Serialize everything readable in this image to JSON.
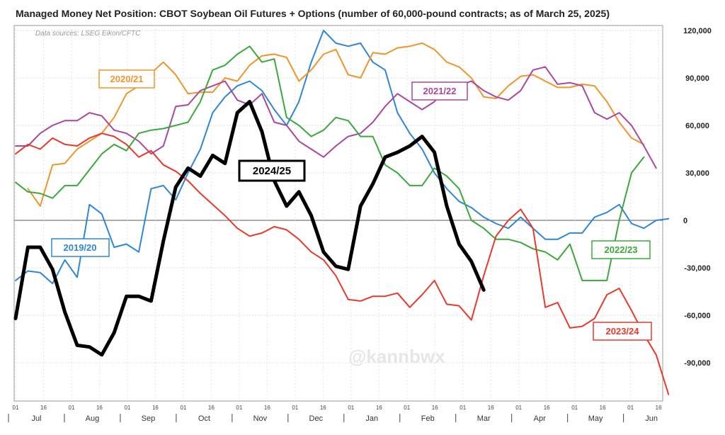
{
  "chart_data": {
    "type": "line",
    "title": "Managed Money Net Position: CBOT Soybean Oil Futures + Options (number of 60,000-pound contracts; as of March 25, 2025)",
    "source": "Data sources: LSEG Eikon/CFTC",
    "watermark": "@kannbwx",
    "xlabel": "",
    "ylabel": "",
    "x_unit": "weeks since July 1",
    "xlim": [
      0,
      52.5
    ],
    "ylim": [
      -115000,
      122000
    ],
    "grid": true,
    "yticks": [
      120000,
      90000,
      60000,
      30000,
      0,
      -30000,
      -60000,
      -90000
    ],
    "ytick_labels": [
      "120,000",
      "90,000",
      "60,000",
      "30,000",
      "0",
      "-30,000",
      "-60,000",
      "-90,000"
    ],
    "months": [
      "Jul",
      "Aug",
      "Sep",
      "Oct",
      "Nov",
      "Dec",
      "Jan",
      "Feb",
      "Mar",
      "Apr",
      "May",
      "Jun"
    ],
    "day_ticks": [
      "01",
      "16"
    ],
    "series": [
      {
        "name": "2019/20",
        "color": "#2f86d6",
        "width": 2,
        "start": 0,
        "values": [
          -38000,
          -32000,
          -33000,
          -40000,
          -25000,
          -36000,
          10000,
          4000,
          -17000,
          -15000,
          -20000,
          20000,
          22000,
          13000,
          30000,
          45000,
          68000,
          78000,
          85000,
          88000,
          82000,
          70000,
          60000,
          75000,
          100000,
          120000,
          112000,
          110000,
          112000,
          100000,
          95000,
          68000,
          55000,
          45000,
          30000,
          20000,
          12000,
          8000,
          2000,
          -2000,
          -5000,
          2000,
          -5000,
          -12000,
          -12000,
          -8000,
          -8000,
          2000,
          5000,
          10000,
          -2000,
          -5000,
          0,
          1000
        ]
      },
      {
        "name": "2020/21",
        "color": "#f0952a",
        "width": 2,
        "start": 1,
        "values": [
          20000,
          9000,
          35000,
          36000,
          45000,
          50000,
          55000,
          65000,
          80000,
          85000,
          93000,
          100000,
          92000,
          80000,
          81000,
          81000,
          90000,
          88000,
          98000,
          104000,
          105000,
          103000,
          88000,
          95000,
          105000,
          108000,
          92000,
          90000,
          106000,
          105000,
          109000,
          110000,
          112000,
          108000,
          100000,
          97000,
          90000,
          78000,
          77000,
          85000,
          91000,
          92000,
          88000,
          84000,
          84000,
          86000,
          85000,
          75000,
          62000,
          52000,
          48000
        ]
      },
      {
        "name": "2021/22",
        "color": "#a8479e",
        "width": 2,
        "start": 0,
        "values": [
          47000,
          47000,
          55000,
          60000,
          63000,
          63000,
          68000,
          66000,
          57000,
          55000,
          50000,
          42000,
          47000,
          72000,
          73000,
          82000,
          85000,
          88000,
          76000,
          73000,
          80000,
          62000,
          60000,
          50000,
          45000,
          40000,
          47000,
          53000,
          55000,
          62000,
          72000,
          80000,
          75000,
          70000,
          75000,
          85000,
          85000,
          88000,
          82000,
          78000,
          76000,
          82000,
          95000,
          97000,
          86000,
          87000,
          85000,
          68000,
          64000,
          68000,
          60000,
          47000,
          33000
        ]
      },
      {
        "name": "2022/23",
        "color": "#3aa83a",
        "width": 2,
        "start": 0,
        "values": [
          24000,
          18000,
          17000,
          14000,
          22000,
          22000,
          32000,
          42000,
          48000,
          44000,
          55000,
          57000,
          58000,
          60000,
          62000,
          75000,
          95000,
          98000,
          105000,
          110000,
          100000,
          102000,
          65000,
          60000,
          53000,
          57000,
          65000,
          63000,
          53000,
          53000,
          35000,
          30000,
          22000,
          22000,
          33000,
          28000,
          20000,
          0,
          -5000,
          -12000,
          -12000,
          -14000,
          -18000,
          -20000,
          -25000,
          -15000,
          -38000,
          -38000,
          -38000,
          0,
          30000,
          40000
        ]
      },
      {
        "name": "2023/24",
        "color": "#e8392b",
        "width": 2,
        "start": 0,
        "values": [
          42000,
          48000,
          45000,
          52000,
          48000,
          47000,
          52000,
          55000,
          53000,
          48000,
          40000,
          44000,
          35000,
          31000,
          25000,
          17000,
          10000,
          3000,
          -5000,
          -10000,
          -8000,
          -4000,
          -6000,
          -12000,
          -20000,
          -25000,
          -35000,
          -50000,
          -51000,
          -48000,
          -48000,
          -46000,
          -55000,
          -47000,
          -38000,
          -53000,
          -54000,
          -63000,
          -35000,
          -10000,
          0,
          7000,
          -5000,
          -55000,
          -52000,
          -68000,
          -67000,
          -62000,
          -47000,
          -43000,
          -57000,
          -72000,
          -85000,
          -110000
        ]
      },
      {
        "name": "2024/25",
        "color": "#000000",
        "width": 5,
        "start": 0,
        "values": [
          -62000,
          -17000,
          -17000,
          -31000,
          -58000,
          -79000,
          -80000,
          -85000,
          -71000,
          -48000,
          -48000,
          -51000,
          -13000,
          21000,
          33000,
          28000,
          41000,
          36000,
          68000,
          75000,
          56000,
          25000,
          9000,
          18000,
          3000,
          -20000,
          -29000,
          -31000,
          9000,
          23000,
          40000,
          43000,
          47000,
          53000,
          43000,
          9000,
          -15000,
          -26000,
          -44000
        ]
      }
    ],
    "annotations": [
      {
        "text": "2020/21",
        "series": "2020/21"
      },
      {
        "text": "2021/22",
        "series": "2021/22"
      },
      {
        "text": "2024/25",
        "series": "2024/25"
      },
      {
        "text": "2019/20",
        "series": "2019/20"
      },
      {
        "text": "2022/23",
        "series": "2022/23"
      },
      {
        "text": "2023/24",
        "series": "2023/24"
      }
    ]
  }
}
